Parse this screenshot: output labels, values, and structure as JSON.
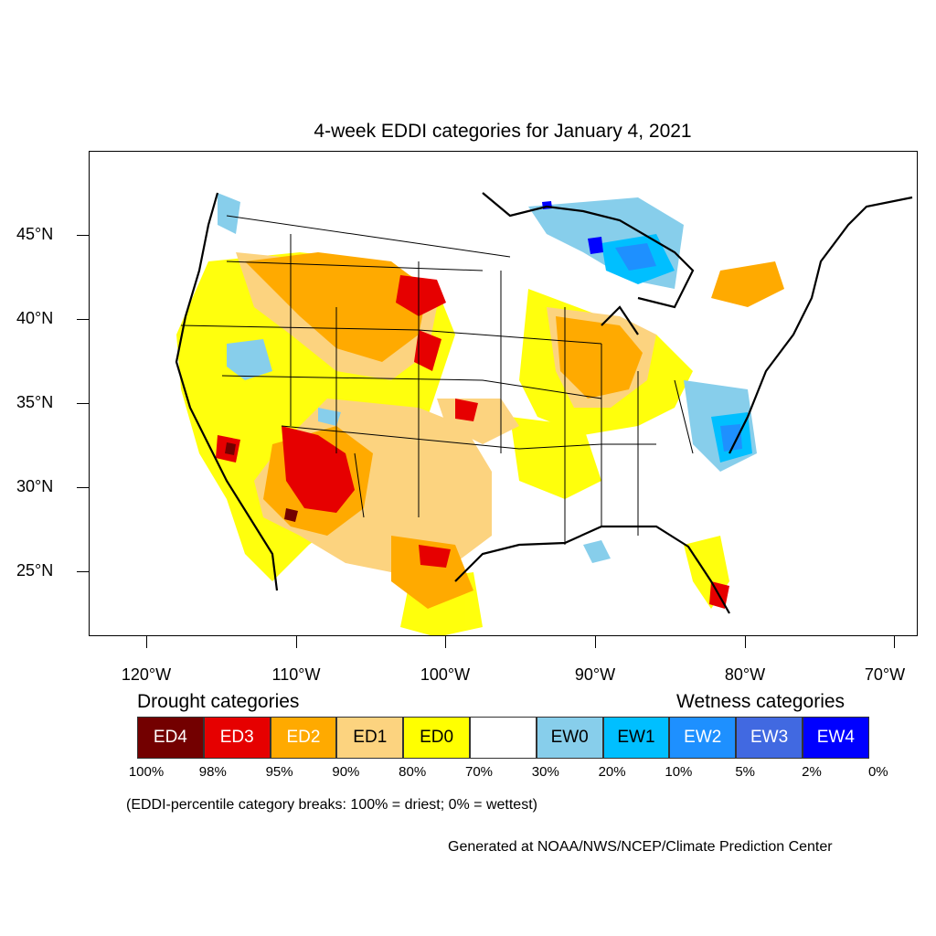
{
  "title": "4-week EDDI categories for January 4, 2021",
  "lat_labels": [
    "45°N",
    "40°N",
    "35°N",
    "30°N",
    "25°N"
  ],
  "lon_labels": [
    "120°W",
    "110°W",
    "100°W",
    "90°W",
    "80°W",
    "70°W"
  ],
  "legend": {
    "drought_heading": "Drought categories",
    "wetness_heading": "Wetness categories",
    "categories": [
      {
        "label": "ED4",
        "color": "#730000",
        "text_color": "#ffffff"
      },
      {
        "label": "ED3",
        "color": "#e60000",
        "text_color": "#ffffff"
      },
      {
        "label": "ED2",
        "color": "#ffaa00",
        "text_color": "#ffffff"
      },
      {
        "label": "ED1",
        "color": "#fcd37f",
        "text_color": "#000000"
      },
      {
        "label": "ED0",
        "color": "#ffff00",
        "text_color": "#000000"
      },
      {
        "label": "",
        "color": "#ffffff",
        "text_color": "#000000"
      },
      {
        "label": "EW0",
        "color": "#87ceeb",
        "text_color": "#000000"
      },
      {
        "label": "EW1",
        "color": "#00bfff",
        "text_color": "#000000"
      },
      {
        "label": "EW2",
        "color": "#1e90ff",
        "text_color": "#ffffff"
      },
      {
        "label": "EW3",
        "color": "#4169e1",
        "text_color": "#ffffff"
      },
      {
        "label": "EW4",
        "color": "#0000ff",
        "text_color": "#ffffff"
      }
    ],
    "percentiles": [
      "100%",
      "98%",
      "95%",
      "90%",
      "80%",
      "70%",
      "30%",
      "20%",
      "10%",
      "5%",
      "2%",
      "0%"
    ]
  },
  "note": "(EDDI-percentile category breaks: 100% = driest; 0% = wettest)",
  "credit": "Generated at NOAA/NWS/NCEP/Climate Prediction Center"
}
